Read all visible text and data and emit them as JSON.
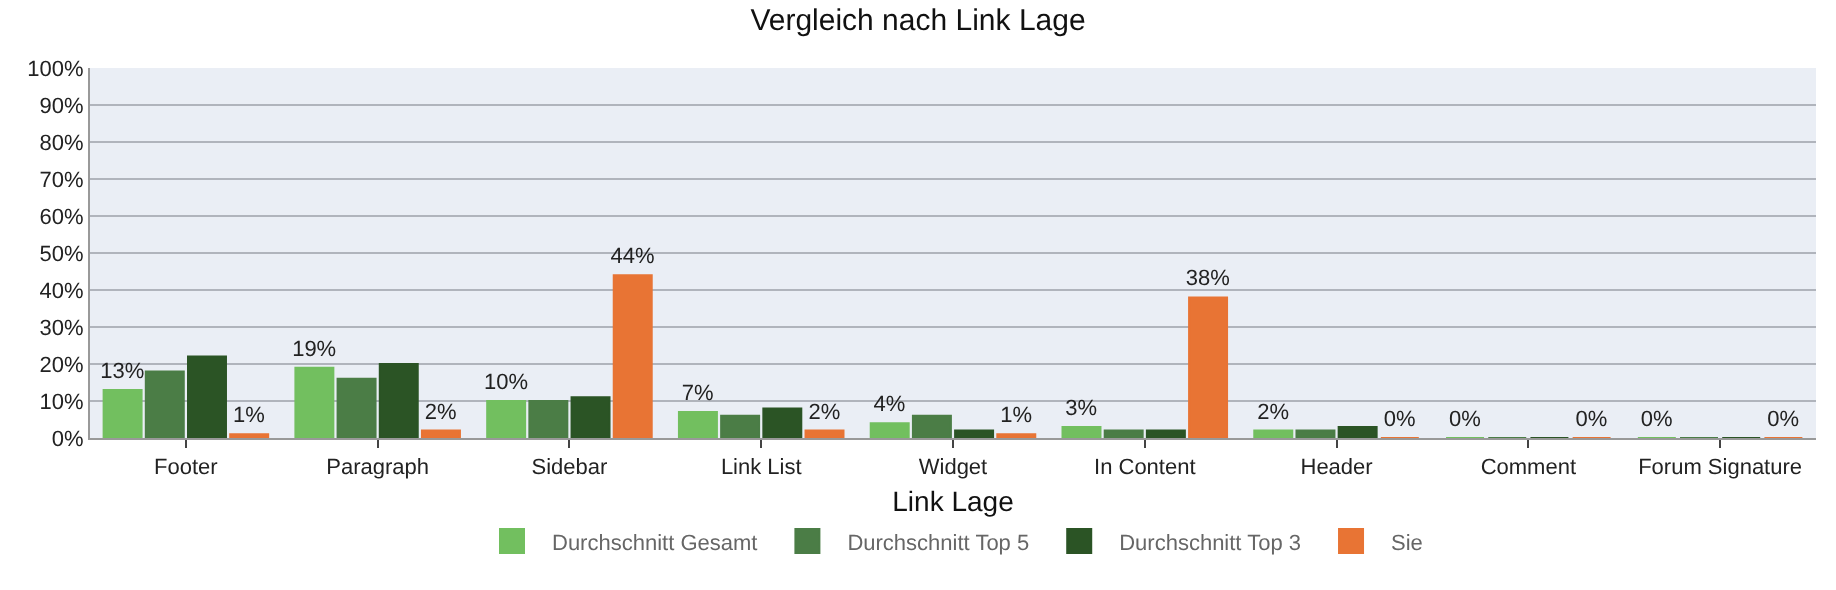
{
  "chart_data": {
    "type": "bar",
    "title": "Vergleich nach Link Lage",
    "xlabel": "Link Lage",
    "categories": [
      "Footer",
      "Paragraph",
      "Sidebar",
      "Link List",
      "Widget",
      "In Content",
      "Header",
      "Comment",
      "Forum Signature"
    ],
    "series": [
      {
        "name": "Durchschnitt Gesamt",
        "color": "#72bf5f",
        "values": [
          13,
          19,
          10,
          7,
          4,
          3,
          2,
          0,
          0
        ],
        "value_labels": [
          "13%",
          "19%",
          "10%",
          "7%",
          "4%",
          "3%",
          "2%",
          "0%",
          "0%"
        ]
      },
      {
        "name": "Durchschnitt Top 5",
        "color": "#4b7d46",
        "values": [
          18,
          16,
          10,
          6,
          6,
          2,
          2,
          0,
          0
        ]
      },
      {
        "name": "Durchschnitt Top 3",
        "color": "#2b5425",
        "values": [
          22,
          20,
          11,
          8,
          2,
          2,
          3,
          0,
          0
        ]
      },
      {
        "name": "Sie",
        "color": "#e87434",
        "values": [
          1,
          2,
          44,
          2,
          1,
          38,
          0,
          0,
          0
        ],
        "value_labels": [
          "1%",
          "2%",
          "44%",
          "2%",
          "1%",
          "38%",
          "0%",
          "0%",
          "0%"
        ]
      }
    ],
    "ylim": [
      0,
      100
    ],
    "yticks": [
      {
        "value": 0,
        "label": "0%"
      },
      {
        "value": 10,
        "label": "10%"
      },
      {
        "value": 20,
        "label": "20%"
      },
      {
        "value": 30,
        "label": "30%"
      },
      {
        "value": 40,
        "label": "40%"
      },
      {
        "value": 50,
        "label": "50%"
      },
      {
        "value": 60,
        "label": "60%"
      },
      {
        "value": 70,
        "label": "70%"
      },
      {
        "value": 80,
        "label": "80%"
      },
      {
        "value": 90,
        "label": "90%"
      },
      {
        "value": 100,
        "label": "100%"
      }
    ],
    "grid": "y",
    "legend": "bottom"
  }
}
